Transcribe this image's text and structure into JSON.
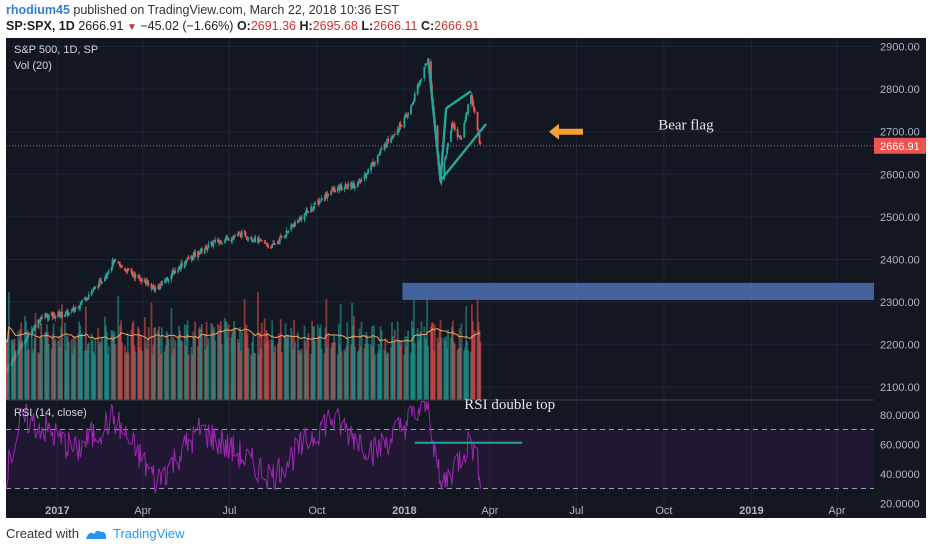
{
  "header": {
    "author": "rhodium45",
    "published_text": "published on TradingView.com, March 22, 2018 10:36 EST"
  },
  "quote": {
    "symbol": "SP:SPX, 1D",
    "last": "2666.91",
    "change": "−45.02 (−1.66%)",
    "o_label": "O:",
    "o": "2691.36",
    "h_label": "H:",
    "h": "2695.68",
    "l_label": "L:",
    "l": "2666.11",
    "c_label": "C:",
    "c": "2666.91"
  },
  "panel": {
    "title": "S&P 500, 1D, SP",
    "vol_label": "Vol (20)",
    "rsi_label": "RSI (14, close)",
    "price_tag": "2666.91"
  },
  "annotations": {
    "bear_flag": "Bear flag",
    "rsi_double_top": "RSI double top"
  },
  "footer": {
    "created_with": "Created with",
    "brand": "TradingView"
  },
  "colors": {
    "background": "#131722",
    "up": "#26a69a",
    "down": "#ef5350",
    "rsi": "#9c27b0",
    "annotation_line": "#26a69a",
    "arrow": "#f7a035",
    "zone": "#4a6aab",
    "last_price": "#ef5350"
  },
  "chart_data": [
    {
      "type": "candlestick",
      "title": "S&P 500, 1D, SP",
      "x_ticks": [
        "2017",
        "Apr",
        "Jul",
        "Oct",
        "2018",
        "Apr",
        "Jul",
        "Oct",
        "2019",
        "Apr"
      ],
      "y_ticks": [
        "2100.00",
        "2200.00",
        "2300.00",
        "2400.00",
        "2500.00",
        "2600.00",
        "2700.00",
        "2800.00",
        "2900.00"
      ],
      "ylim": [
        2070,
        2920
      ],
      "last_price": 2666.91,
      "approx_close_path": [
        {
          "x": "2016-11-08",
          "y": 2140
        },
        {
          "x": "2016-11-20",
          "y": 2185
        },
        {
          "x": "2016-12-15",
          "y": 2265
        },
        {
          "x": "2017-01-15",
          "y": 2275
        },
        {
          "x": "2017-02-15",
          "y": 2345
        },
        {
          "x": "2017-03-01",
          "y": 2395
        },
        {
          "x": "2017-04-15",
          "y": 2330
        },
        {
          "x": "2017-05-15",
          "y": 2395
        },
        {
          "x": "2017-06-15",
          "y": 2440
        },
        {
          "x": "2017-07-15",
          "y": 2460
        },
        {
          "x": "2017-08-15",
          "y": 2430
        },
        {
          "x": "2017-09-15",
          "y": 2500
        },
        {
          "x": "2017-10-15",
          "y": 2560
        },
        {
          "x": "2017-11-15",
          "y": 2580
        },
        {
          "x": "2017-12-15",
          "y": 2680
        },
        {
          "x": "2018-01-05",
          "y": 2740
        },
        {
          "x": "2018-01-26",
          "y": 2872
        },
        {
          "x": "2018-02-08",
          "y": 2580
        },
        {
          "x": "2018-02-20",
          "y": 2720
        },
        {
          "x": "2018-03-01",
          "y": 2680
        },
        {
          "x": "2018-03-12",
          "y": 2790
        },
        {
          "x": "2018-03-22",
          "y": 2667
        }
      ],
      "series": [
        {
          "name": "Vol (20)"
        }
      ]
    },
    {
      "type": "line",
      "title": "RSI (14, close)",
      "y_ticks": [
        "20.0000",
        "40.0000",
        "60.0000",
        "80.0000"
      ],
      "ylim": [
        10,
        90
      ],
      "guides": [
        30,
        70
      ],
      "approx_path": [
        {
          "x": "2016-11-08",
          "y": 40
        },
        {
          "x": "2016-11-25",
          "y": 78
        },
        {
          "x": "2016-12-20",
          "y": 70
        },
        {
          "x": "2017-01-20",
          "y": 55
        },
        {
          "x": "2017-03-01",
          "y": 78
        },
        {
          "x": "2017-04-15",
          "y": 35
        },
        {
          "x": "2017-06-01",
          "y": 70
        },
        {
          "x": "2017-08-15",
          "y": 38
        },
        {
          "x": "2017-10-15",
          "y": 78
        },
        {
          "x": "2017-12-01",
          "y": 55
        },
        {
          "x": "2018-01-26",
          "y": 88
        },
        {
          "x": "2018-02-08",
          "y": 30
        },
        {
          "x": "2018-03-12",
          "y": 63
        },
        {
          "x": "2018-03-22",
          "y": 40
        }
      ]
    }
  ]
}
